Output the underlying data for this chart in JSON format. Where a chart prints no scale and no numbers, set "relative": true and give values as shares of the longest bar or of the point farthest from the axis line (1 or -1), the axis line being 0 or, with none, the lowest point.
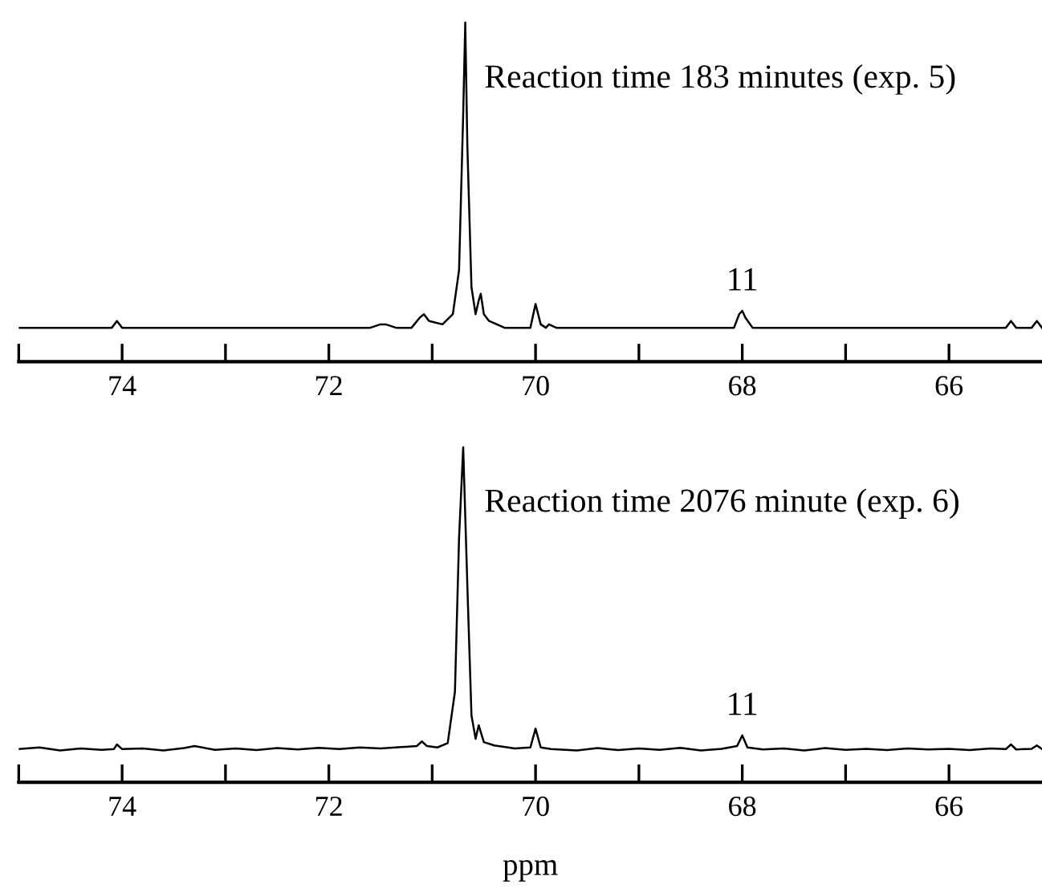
{
  "chart_data": [
    {
      "type": "line",
      "relative": true,
      "xlim": [
        75,
        65.1
      ],
      "xticks": [
        {
          "value": 75,
          "label": null
        },
        74,
        {
          "value": 73,
          "label": null
        },
        72,
        {
          "value": 71,
          "label": null
        },
        70,
        {
          "value": 69,
          "label": null
        },
        68,
        {
          "value": 67,
          "label": null
        },
        66
      ],
      "grid": false,
      "legend": false,
      "marker": "none",
      "line_style": "solid",
      "tick_labels": "x",
      "annotations": [
        "Reaction time 183 minutes (exp. 5)",
        {
          "text": "11",
          "x": 68,
          "y": 0.15
        }
      ],
      "series": [
        {
          "color": "#000000",
          "x": [
            75,
            74.6,
            74.1,
            74.05,
            74.0,
            73.5,
            73.0,
            72.5,
            72.0,
            71.6,
            71.5,
            71.45,
            71.35,
            71.2,
            71.12,
            71.08,
            71.03,
            70.9,
            70.8,
            70.74,
            70.7,
            70.68,
            70.66,
            70.62,
            70.58,
            70.55,
            70.53,
            70.5,
            70.45,
            70.3,
            70.05,
            70.0,
            69.95,
            69.9,
            69.87,
            69.8,
            69.5,
            69.0,
            68.5,
            68.08,
            68.03,
            68.0,
            67.97,
            67.9,
            67.5,
            67.0,
            66.5,
            66.0,
            65.45,
            65.4,
            65.35,
            65.2,
            65.15,
            65.1
          ],
          "values": [
            0.1,
            0.1,
            0.1,
            0.12,
            0.1,
            0.1,
            0.1,
            0.1,
            0.1,
            0.1,
            0.11,
            0.11,
            0.1,
            0.1,
            0.13,
            0.14,
            0.12,
            0.11,
            0.14,
            0.27,
            0.73,
            1,
            0.64,
            0.22,
            0.14,
            0.18,
            0.2,
            0.14,
            0.12,
            0.1,
            0.1,
            0.17,
            0.11,
            0.1,
            0.11,
            0.1,
            0.1,
            0.1,
            0.1,
            0.1,
            0.14,
            0.15,
            0.13,
            0.1,
            0.1,
            0.1,
            0.1,
            0.1,
            0.1,
            0.12,
            0.1,
            0.1,
            0.12,
            0.1
          ]
        }
      ]
    },
    {
      "type": "line",
      "relative": true,
      "xlim": [
        75,
        65.1
      ],
      "xticks": [
        {
          "value": 75,
          "label": null
        },
        74,
        {
          "value": 73,
          "label": null
        },
        72,
        {
          "value": 71,
          "label": null
        },
        70,
        {
          "value": 69,
          "label": null
        },
        68,
        {
          "value": 67,
          "label": null
        },
        66
      ],
      "xlabel": "ppm",
      "grid": false,
      "legend": false,
      "marker": "none",
      "line_style": "solid",
      "tick_labels": "x",
      "annotations": [
        "Reaction time 2076 minute (exp. 6)",
        {
          "text": "11",
          "x": 68,
          "y": 0.14
        }
      ],
      "series": [
        {
          "color": "#000000",
          "x": [
            75,
            74.8,
            74.6,
            74.4,
            74.2,
            74.08,
            74.05,
            74.0,
            73.8,
            73.6,
            73.4,
            73.3,
            73.1,
            72.9,
            72.7,
            72.5,
            72.3,
            72.1,
            71.9,
            71.7,
            71.5,
            71.3,
            71.15,
            71.1,
            71.05,
            70.95,
            70.85,
            70.78,
            70.74,
            70.7,
            70.66,
            70.62,
            70.58,
            70.55,
            70.5,
            70.4,
            70.2,
            70.05,
            70.0,
            69.95,
            69.85,
            69.6,
            69.4,
            69.2,
            69.0,
            68.8,
            68.6,
            68.4,
            68.2,
            68.05,
            68.0,
            67.95,
            67.8,
            67.6,
            67.4,
            67.2,
            67.0,
            66.8,
            66.6,
            66.4,
            66.2,
            66.0,
            65.8,
            65.6,
            65.45,
            65.4,
            65.35,
            65.2,
            65.15,
            65.1
          ],
          "values": [
            0.099,
            0.104,
            0.095,
            0.101,
            0.097,
            0.099,
            0.113,
            0.099,
            0.101,
            0.095,
            0.102,
            0.108,
            0.097,
            0.101,
            0.096,
            0.102,
            0.098,
            0.103,
            0.099,
            0.104,
            0.101,
            0.105,
            0.108,
            0.122,
            0.108,
            0.104,
            0.117,
            0.27,
            0.73,
            1,
            0.59,
            0.2,
            0.13,
            0.17,
            0.12,
            0.11,
            0.101,
            0.104,
            0.16,
            0.104,
            0.099,
            0.095,
            0.102,
            0.096,
            0.101,
            0.097,
            0.103,
            0.095,
            0.1,
            0.108,
            0.14,
            0.104,
            0.098,
            0.101,
            0.095,
            0.102,
            0.097,
            0.1,
            0.096,
            0.101,
            0.098,
            0.1,
            0.096,
            0.101,
            0.099,
            0.113,
            0.098,
            0.1,
            0.11,
            0.099
          ]
        }
      ]
    }
  ]
}
